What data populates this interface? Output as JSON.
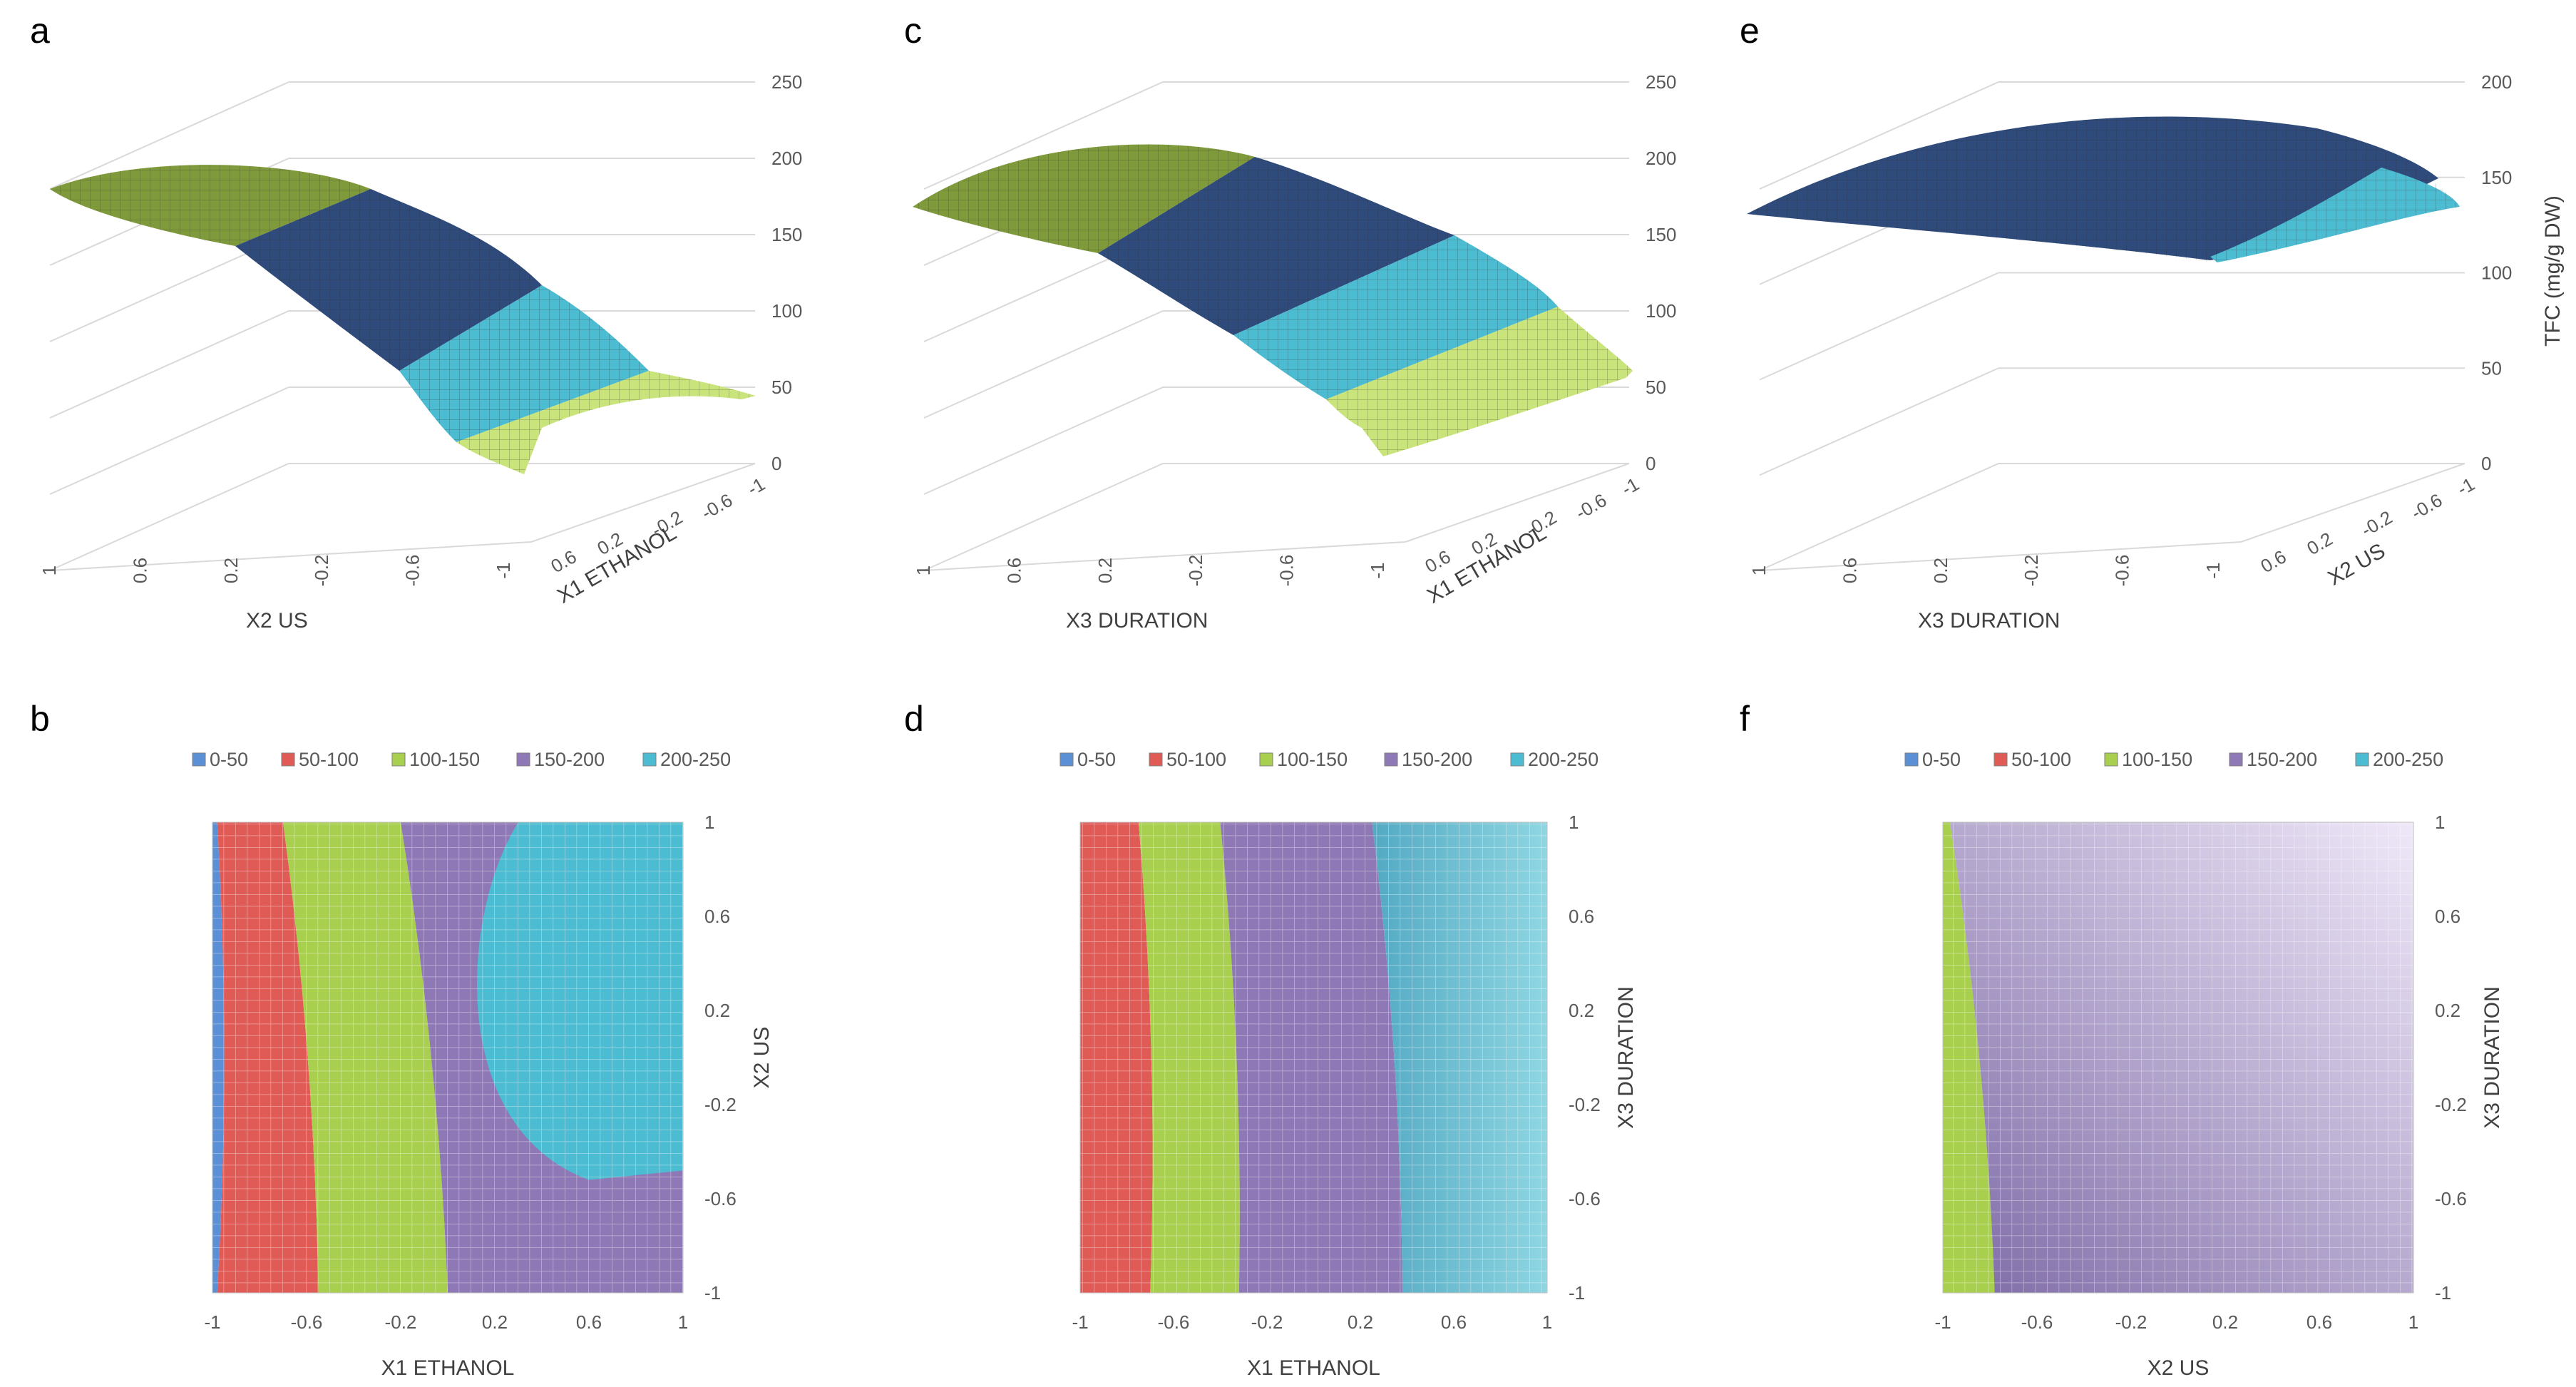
{
  "colors": {
    "c0_50": "#5b8fd6",
    "c50_100": "#e05b55",
    "c100_150": "#a9cf4f",
    "c150_200": "#8e78b6",
    "c200_250": "#4bbcd1",
    "dark_blue": "#2f4b7c",
    "light_green": "#c9e47a",
    "olive": "#7f9a3a",
    "grid": "#d9d9d9"
  },
  "chart_data": [
    {
      "panel": "a",
      "type": "surface",
      "x_title": "X2 US",
      "depth_title": "X1 ETHANOL",
      "z_title": "",
      "x_ticks": [
        "1",
        "0.6",
        "0.2",
        "-0.2",
        "-0.6",
        "-1"
      ],
      "depth_ticks": [
        "-1",
        "-0.6",
        "-0.2",
        "0.2",
        "0.6"
      ],
      "z_ticks": [
        "250",
        "200",
        "150",
        "100",
        "50",
        "0"
      ],
      "zlim": [
        0,
        250
      ],
      "bands": [
        "olive",
        "dark_blue",
        "c200_250",
        "light_green"
      ]
    },
    {
      "panel": "c",
      "type": "surface",
      "x_title": "X3 DURATION",
      "depth_title": "X1 ETHANOL",
      "z_title": "",
      "x_ticks": [
        "1",
        "0.6",
        "0.2",
        "-0.2",
        "-0.6",
        "-1"
      ],
      "depth_ticks": [
        "-1",
        "-0.6",
        "-0.2",
        "0.2",
        "0.6"
      ],
      "z_ticks": [
        "250",
        "200",
        "150",
        "100",
        "50",
        "0"
      ],
      "zlim": [
        0,
        250
      ],
      "bands": [
        "olive",
        "dark_blue",
        "c200_250",
        "light_green"
      ]
    },
    {
      "panel": "e",
      "type": "surface",
      "x_title": "X3 DURATION",
      "depth_title": "X2 US",
      "z_title": "TFC (mg/g DW)",
      "x_ticks": [
        "1",
        "0.6",
        "0.2",
        "-0.2",
        "-0.6",
        "-1"
      ],
      "depth_ticks": [
        "-1",
        "-0.6",
        "-0.2",
        "0.2",
        "0.6"
      ],
      "z_ticks": [
        "200",
        "150",
        "100",
        "50",
        "0"
      ],
      "zlim": [
        0,
        200
      ],
      "bands": [
        "dark_blue",
        "c200_250"
      ]
    },
    {
      "panel": "b",
      "type": "contour",
      "x_title": "X1 ETHANOL",
      "y_title": "X2 US",
      "x_ticks": [
        "-1",
        "-0.6",
        "-0.2",
        "0.2",
        "0.6",
        "1"
      ],
      "y_ticks": [
        "1",
        "0.6",
        "0.2",
        "-0.2",
        "-0.6",
        "-1"
      ],
      "xlim": [
        -1,
        1
      ],
      "ylim": [
        -1,
        1
      ],
      "legend": [
        "0-50",
        "50-100",
        "100-150",
        "150-200",
        "200-250"
      ],
      "region_boundaries_x": [
        -0.98,
        -0.7,
        -0.2
      ],
      "region_boundaries_x_bottom": [
        -0.98,
        -0.55,
        0.0
      ],
      "top_region": "200-250"
    },
    {
      "panel": "d",
      "type": "contour",
      "x_title": "X1 ETHANOL",
      "y_title": "X3 DURATION",
      "x_ticks": [
        "-1",
        "-0.6",
        "-0.2",
        "0.2",
        "0.6",
        "1"
      ],
      "y_ticks": [
        "1",
        "0.6",
        "0.2",
        "-0.2",
        "-0.6",
        "-1"
      ],
      "xlim": [
        -1,
        1
      ],
      "ylim": [
        -1,
        1
      ],
      "legend": [
        "0-50",
        "50-100",
        "100-150",
        "150-200",
        "200-250"
      ],
      "region_boundaries_x": [
        -0.75,
        -0.4,
        0.25
      ],
      "region_boundaries_x_bottom": [
        -0.7,
        -0.32,
        0.38
      ],
      "top_region": "200-250"
    },
    {
      "panel": "f",
      "type": "contour",
      "x_title": "X2 US",
      "y_title": "X3 DURATION",
      "x_ticks": [
        "-1",
        "-0.6",
        "-0.2",
        "0.2",
        "0.6",
        "1"
      ],
      "y_ticks": [
        "1",
        "0.6",
        "0.2",
        "-0.2",
        "-0.6",
        "-1"
      ],
      "xlim": [
        -1,
        1
      ],
      "ylim": [
        -1,
        1
      ],
      "legend": [
        "0-50",
        "50-100",
        "100-150",
        "150-200",
        "200-250"
      ],
      "region_boundaries_x": [
        -0.97
      ],
      "region_boundaries_x_bottom": [
        -0.78
      ],
      "top_region": "150-200"
    }
  ]
}
